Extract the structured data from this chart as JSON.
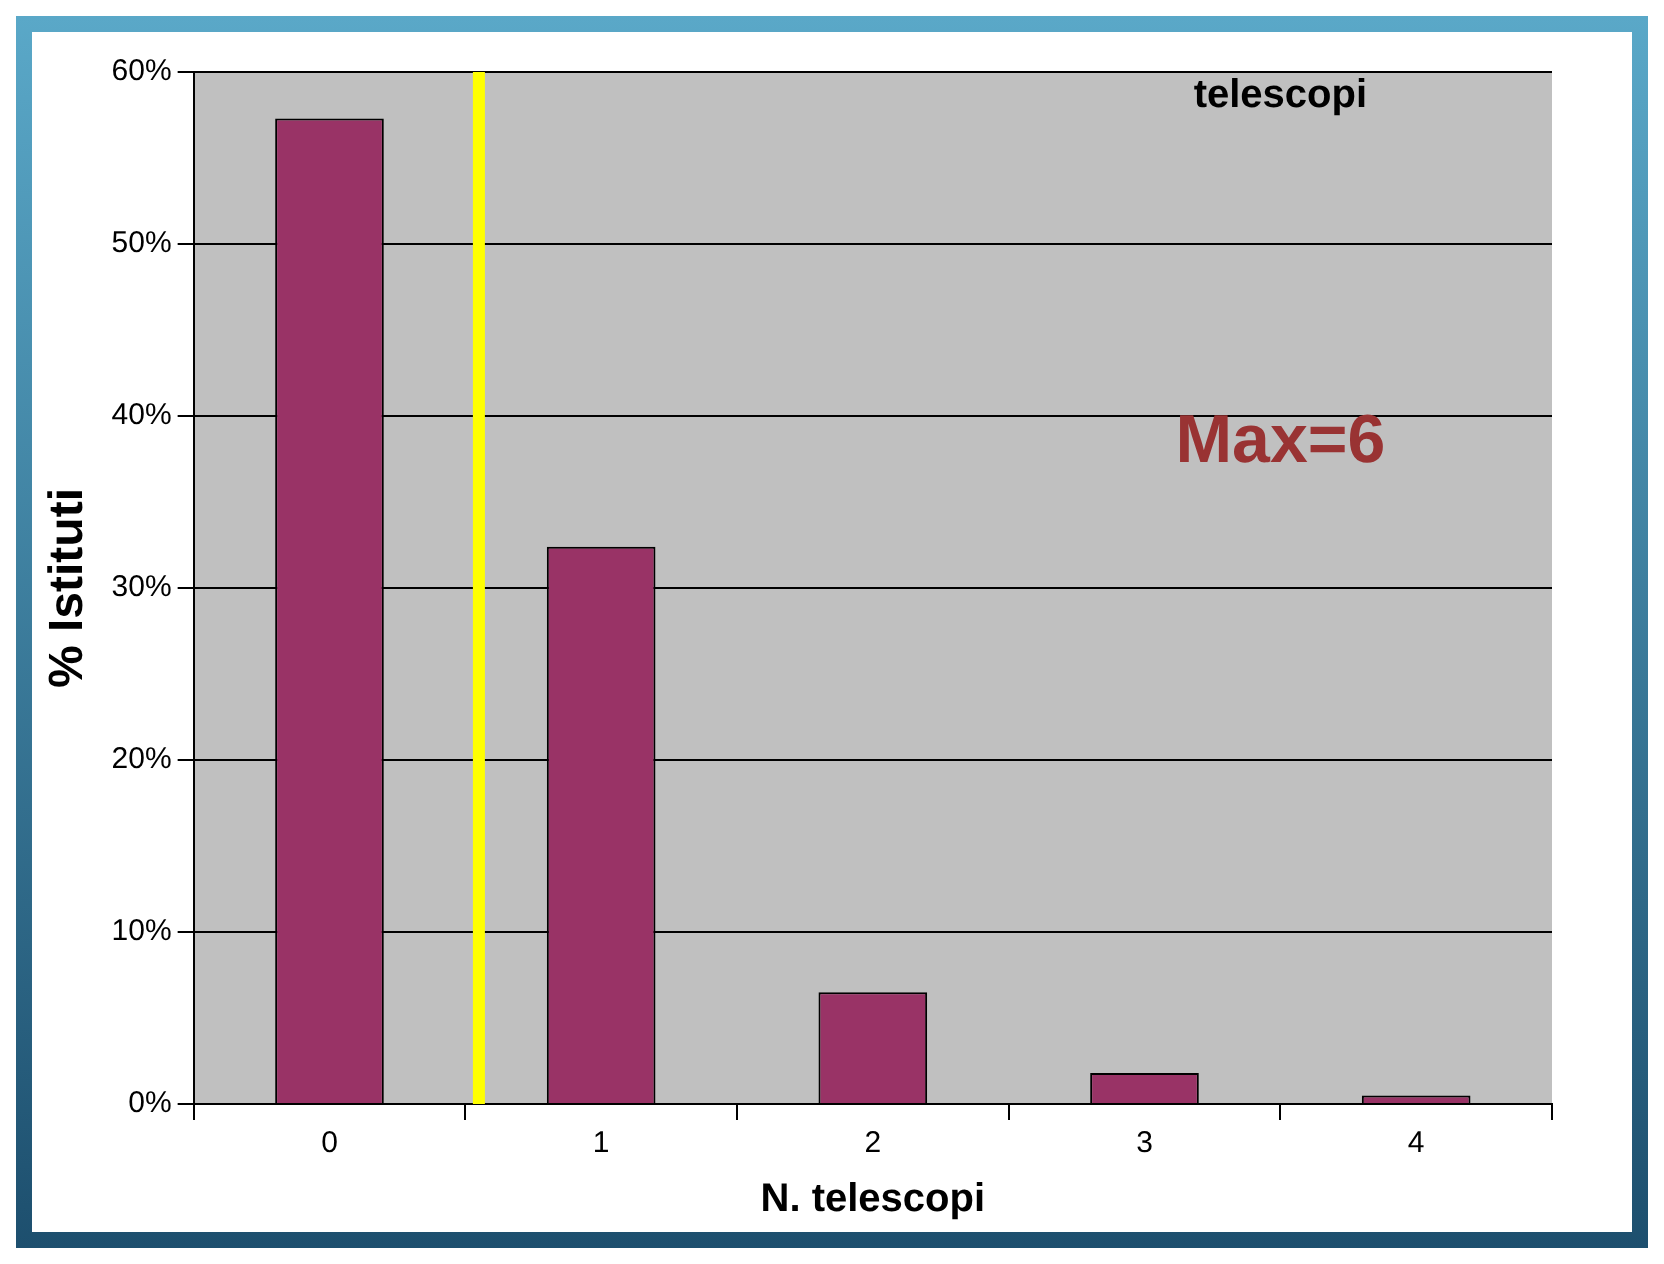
{
  "chart_data": {
    "type": "bar",
    "xlabel": "N. telescopi",
    "ylabel": "% Istituti",
    "x": [
      0,
      1,
      2,
      3,
      4
    ],
    "values": [
      57.3,
      32.4,
      6.5,
      1.8,
      0.5
    ],
    "color": "#993366",
    "xlim": [
      -0.5,
      4.5
    ],
    "xticks": [
      0,
      1,
      2,
      3,
      4
    ],
    "ylim": [
      0,
      60
    ],
    "yticks": [
      {
        "value": 0,
        "label": "0%"
      },
      {
        "value": 10,
        "label": "10%"
      },
      {
        "value": 20,
        "label": "20%"
      },
      {
        "value": 30,
        "label": "30%"
      },
      {
        "value": 40,
        "label": "40%"
      },
      {
        "value": 50,
        "label": "50%"
      },
      {
        "value": 60,
        "label": "60%"
      }
    ],
    "grid": "y",
    "ref_lines": [
      {
        "axis": "x",
        "value": 0.55,
        "color": "#ffff00"
      }
    ],
    "annotations": [
      "telescopi",
      "Max=6"
    ]
  }
}
